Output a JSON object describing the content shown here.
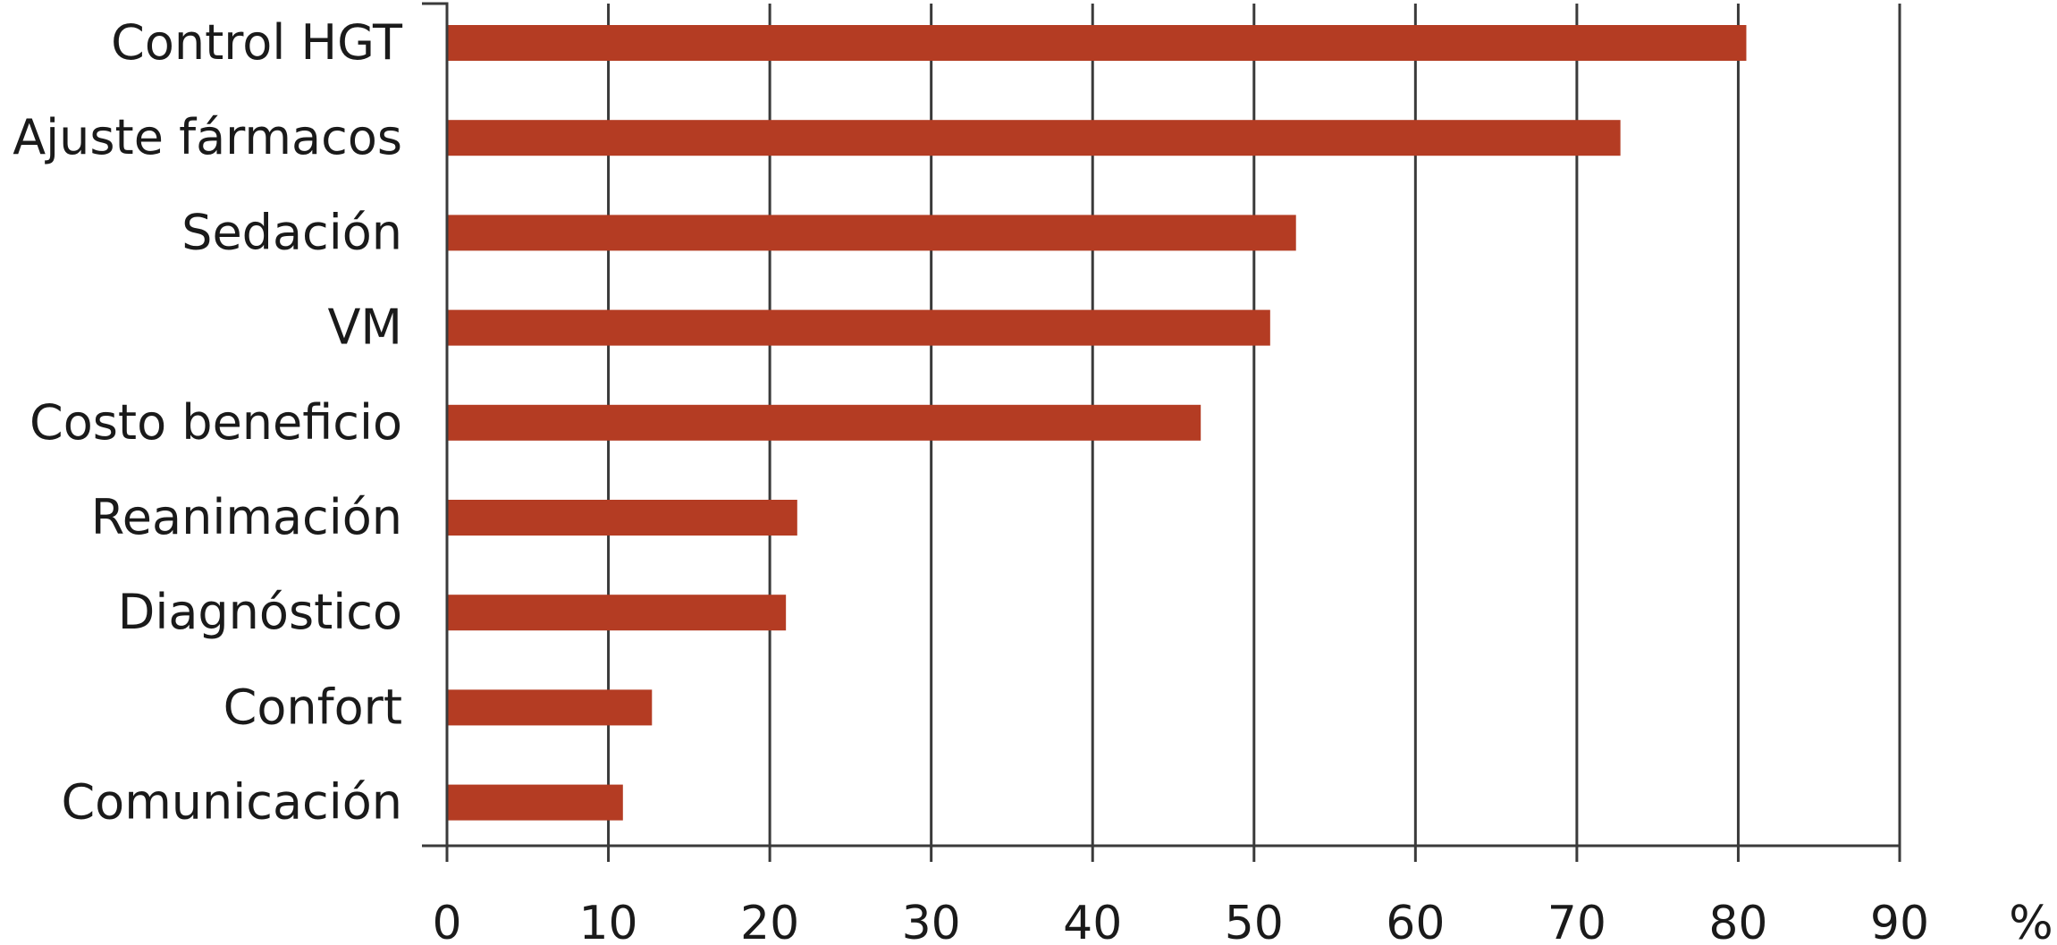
{
  "chart_data": {
    "type": "bar",
    "orientation": "horizontal",
    "categories": [
      "Control HGT",
      "Ajuste fármacos",
      "Sedación",
      "VM",
      "Costo beneficio",
      "Reanimación",
      "Diagnóstico",
      "Confort",
      "Comunicación"
    ],
    "values": [
      80.5,
      72.7,
      52.6,
      51.0,
      46.7,
      21.7,
      21.0,
      12.7,
      10.9
    ],
    "xlim": [
      0,
      90
    ],
    "xticks": [
      "0",
      "10",
      "20",
      "30",
      "40",
      "50",
      "60",
      "70",
      "80",
      "90"
    ],
    "x_unit": "%",
    "grid": true,
    "bar_color": "#b43c23"
  }
}
